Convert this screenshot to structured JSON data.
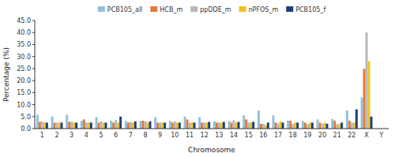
{
  "chart_data": {
    "type": "bar",
    "xlabel": "Chromosome",
    "ylabel": "Percentage (%)",
    "categories": [
      "1",
      "2",
      "3",
      "4",
      "5",
      "6",
      "7",
      "8",
      "9",
      "10",
      "11",
      "12",
      "13",
      "14",
      "15",
      "16",
      "17",
      "18",
      "19",
      "20",
      "21",
      "22",
      "X",
      "Y"
    ],
    "series": [
      {
        "name": "PCB105_all",
        "color": "#92c0e0",
        "values": [
          5.8,
          5.0,
          5.8,
          3.2,
          4.8,
          3.3,
          3.2,
          3.2,
          4.8,
          3.2,
          5.0,
          4.8,
          3.0,
          3.2,
          5.5,
          7.5,
          5.5,
          3.3,
          3.2,
          3.8,
          4.0,
          7.5,
          13.0,
          0.0
        ]
      },
      {
        "name": "HCB_m",
        "color": "#e07a3a",
        "values": [
          2.8,
          2.5,
          2.8,
          3.8,
          2.5,
          2.5,
          2.5,
          3.3,
          2.5,
          2.5,
          3.8,
          2.5,
          2.5,
          2.5,
          3.8,
          2.0,
          2.5,
          3.3,
          2.5,
          2.5,
          3.3,
          3.3,
          24.9,
          0.0
        ]
      },
      {
        "name": "ppDDE_m",
        "color": "#b8b8b8",
        "values": [
          3.0,
          2.5,
          2.8,
          2.5,
          3.0,
          3.5,
          2.8,
          3.0,
          2.5,
          3.0,
          2.5,
          2.5,
          2.5,
          3.5,
          2.5,
          2.0,
          2.0,
          2.0,
          1.8,
          2.0,
          1.8,
          2.5,
          40.0,
          0.0
        ]
      },
      {
        "name": "nPFOS_m",
        "color": "#f0c020",
        "values": [
          2.5,
          2.5,
          2.5,
          2.5,
          2.5,
          2.5,
          2.5,
          2.5,
          2.5,
          2.5,
          2.5,
          2.5,
          2.5,
          2.5,
          2.5,
          1.5,
          3.0,
          2.5,
          2.5,
          2.5,
          2.0,
          2.5,
          28.0,
          0.0
        ]
      },
      {
        "name": "PCB105_f",
        "color": "#1f3f7a",
        "values": [
          2.5,
          2.5,
          2.5,
          2.5,
          2.5,
          5.0,
          3.0,
          3.0,
          2.5,
          2.5,
          2.5,
          2.8,
          2.8,
          2.8,
          2.8,
          2.5,
          2.5,
          2.5,
          2.5,
          2.0,
          2.5,
          8.0,
          5.0,
          0.0
        ]
      }
    ],
    "ylim": [
      0,
      45
    ],
    "yticks": [
      {
        "value": 0.0,
        "label": "0.0"
      },
      {
        "value": 5.0,
        "label": "5.0"
      },
      {
        "value": 10.0,
        "label": "10.0"
      },
      {
        "value": 15.0,
        "label": "15.0"
      },
      {
        "value": 20.0,
        "label": "20.0"
      },
      {
        "value": 25.0,
        "label": "25.0"
      },
      {
        "value": 30.0,
        "label": "30.0"
      },
      {
        "value": 35.0,
        "label": "35.0"
      },
      {
        "value": 40.0,
        "label": "40.0"
      },
      {
        "value": 45.0,
        "label": "45.0"
      }
    ],
    "grid": false,
    "legend": "top"
  }
}
